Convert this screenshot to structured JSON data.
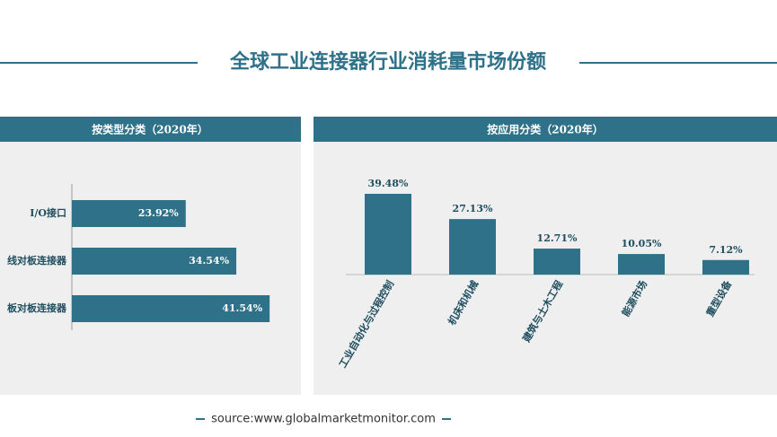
{
  "title": "全球工业连接器行业消耗量市场份额",
  "source": "source:www.globalmarketmonitor.com",
  "chart_data": [
    {
      "type": "hbar",
      "title": "按类型分类（2020年）",
      "categories": [
        "I/O接口",
        "线对板连接器",
        "板对板连接器"
      ],
      "values": [
        23.92,
        34.54,
        41.54
      ],
      "value_labels": [
        "23.92%",
        "34.54%",
        "41.54%"
      ],
      "color": "#2e7189"
    },
    {
      "type": "bar",
      "title": "按应用分类（2020年）",
      "categories": [
        "工业自动化与过程控制",
        "机床和机械",
        "建筑与土木工程",
        "能源市场",
        "重型设备"
      ],
      "values": [
        39.48,
        27.13,
        12.71,
        10.05,
        7.12
      ],
      "value_labels": [
        "39.48%",
        "27.13%",
        "12.71%",
        "10.05%",
        "7.12%"
      ],
      "color": "#2e7189"
    }
  ]
}
